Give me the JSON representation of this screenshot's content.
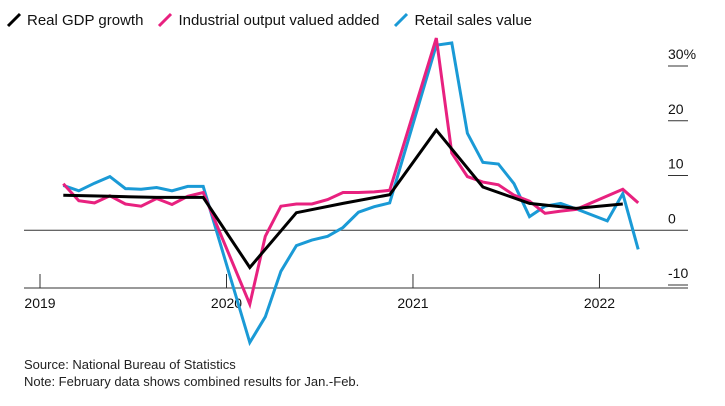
{
  "legend": [
    {
      "label": "Real GDP growth",
      "color": "#000000"
    },
    {
      "label": "Industrial output valued added",
      "color": "#e8217f"
    },
    {
      "label": "Retail sales value",
      "color": "#1a9ad6"
    }
  ],
  "footer": {
    "source": "Source: National Bureau of Statistics",
    "note": "Note: February data shows combined results for Jan.-Feb."
  },
  "chart_data": {
    "type": "line",
    "title": "",
    "xlabel": "",
    "ylabel": "",
    "ylim": [
      -10,
      30
    ],
    "xlim": [
      2019.0,
      2022.33
    ],
    "y_ticks": [
      {
        "value": 30,
        "label": "30%"
      },
      {
        "value": 20,
        "label": "20"
      },
      {
        "value": 10,
        "label": "10"
      },
      {
        "value": 0,
        "label": "0"
      },
      {
        "value": -10,
        "label": "-10"
      }
    ],
    "x_ticks": [
      {
        "value": 2019,
        "label": "2019"
      },
      {
        "value": 2020,
        "label": "2020"
      },
      {
        "value": 2021,
        "label": "2021"
      },
      {
        "value": 2022,
        "label": "2022"
      }
    ],
    "grid": false,
    "legend_position": "top",
    "series": [
      {
        "name": "Real GDP growth",
        "color": "#000000",
        "points": [
          [
            2019.125,
            6.4
          ],
          [
            2019.375,
            6.2
          ],
          [
            2019.625,
            6.0
          ],
          [
            2019.875,
            6.0
          ],
          [
            2020.125,
            -6.8
          ],
          [
            2020.375,
            3.2
          ],
          [
            2020.625,
            4.9
          ],
          [
            2020.875,
            6.5
          ],
          [
            2021.125,
            18.3
          ],
          [
            2021.375,
            7.9
          ],
          [
            2021.625,
            4.9
          ],
          [
            2021.875,
            4.0
          ],
          [
            2022.125,
            4.8
          ]
        ]
      },
      {
        "name": "Industrial output valued added",
        "color": "#e8217f",
        "points": [
          [
            2019.125,
            8.5
          ],
          [
            2019.208,
            5.4
          ],
          [
            2019.292,
            5.0
          ],
          [
            2019.375,
            6.3
          ],
          [
            2019.458,
            4.8
          ],
          [
            2019.542,
            4.4
          ],
          [
            2019.625,
            5.8
          ],
          [
            2019.708,
            4.7
          ],
          [
            2019.792,
            6.2
          ],
          [
            2019.875,
            6.9
          ],
          [
            2020.125,
            -13.5
          ],
          [
            2020.208,
            -1.1
          ],
          [
            2020.292,
            4.4
          ],
          [
            2020.375,
            4.8
          ],
          [
            2020.458,
            4.8
          ],
          [
            2020.542,
            5.6
          ],
          [
            2020.625,
            6.9
          ],
          [
            2020.708,
            6.9
          ],
          [
            2020.792,
            7.0
          ],
          [
            2020.875,
            7.3
          ],
          [
            2021.125,
            35.1
          ],
          [
            2021.208,
            14.1
          ],
          [
            2021.292,
            9.8
          ],
          [
            2021.375,
            8.8
          ],
          [
            2021.458,
            8.3
          ],
          [
            2021.542,
            6.4
          ],
          [
            2021.625,
            5.3
          ],
          [
            2021.708,
            3.1
          ],
          [
            2021.792,
            3.5
          ],
          [
            2021.875,
            3.8
          ],
          [
            2022.125,
            7.5
          ],
          [
            2022.208,
            5.0
          ]
        ]
      },
      {
        "name": "Retail sales value",
        "color": "#1a9ad6",
        "points": [
          [
            2019.125,
            8.2
          ],
          [
            2019.208,
            7.2
          ],
          [
            2019.292,
            8.6
          ],
          [
            2019.375,
            9.8
          ],
          [
            2019.458,
            7.6
          ],
          [
            2019.542,
            7.5
          ],
          [
            2019.625,
            7.8
          ],
          [
            2019.708,
            7.2
          ],
          [
            2019.792,
            8.0
          ],
          [
            2019.875,
            8.0
          ],
          [
            2020.125,
            -20.5
          ],
          [
            2020.208,
            -15.8
          ],
          [
            2020.292,
            -7.5
          ],
          [
            2020.375,
            -2.8
          ],
          [
            2020.458,
            -1.8
          ],
          [
            2020.542,
            -1.1
          ],
          [
            2020.625,
            0.5
          ],
          [
            2020.708,
            3.3
          ],
          [
            2020.792,
            4.3
          ],
          [
            2020.875,
            5.0
          ],
          [
            2021.125,
            33.8
          ],
          [
            2021.208,
            34.2
          ],
          [
            2021.292,
            17.7
          ],
          [
            2021.375,
            12.4
          ],
          [
            2021.458,
            12.1
          ],
          [
            2021.542,
            8.5
          ],
          [
            2021.625,
            2.5
          ],
          [
            2021.708,
            4.4
          ],
          [
            2021.792,
            4.9
          ],
          [
            2021.875,
            3.9
          ],
          [
            2022.042,
            1.7
          ],
          [
            2022.125,
            6.7
          ],
          [
            2022.208,
            -3.5
          ]
        ]
      }
    ]
  }
}
